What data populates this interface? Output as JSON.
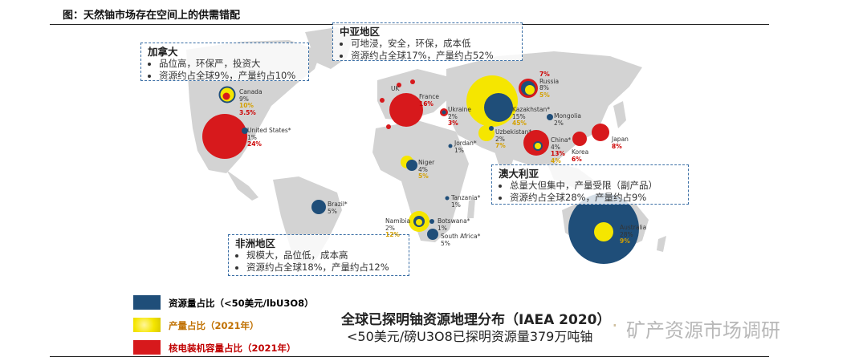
{
  "header": {
    "title": "图：天然铀市场存在空间上的供需错配"
  },
  "boxes": {
    "canada": {
      "title": "加拿大",
      "items": [
        "品位高，环保严，投资大",
        "资源约占全球9%，产量约占10%"
      ]
    },
    "central_asia": {
      "title": "中亚地区",
      "items": [
        "可地浸，安全，环保，成本低",
        "资源约占全球17%，产量约占52%"
      ]
    },
    "australia": {
      "title": "澳大利亚",
      "items": [
        "总量大但集中，产量受限（副产品）",
        "资源约占全球28%，产量约占9%"
      ]
    },
    "africa": {
      "title": "非洲地区",
      "items": [
        "规模大，品位低，成本高",
        "资源约占全球18%，产量约占12%"
      ]
    }
  },
  "countries": {
    "canada": {
      "name": "Canada",
      "resource": "9%",
      "production": "10%",
      "nuclear": "3.5%"
    },
    "usa": {
      "name": "United States*",
      "resource": "1%",
      "nuclear": "24%"
    },
    "uk": {
      "name": "UK"
    },
    "france": {
      "name": "France",
      "nuclear": "16%"
    },
    "ukraine": {
      "name": "Ukraine",
      "resource": "2%",
      "nuclear": "3%"
    },
    "russia": {
      "name": "Russia",
      "resource": "8%",
      "production": "5%",
      "nuclear": "7%"
    },
    "kazakhstan": {
      "name": "Kazakhstan*",
      "resource": "15%",
      "production": "45%"
    },
    "uzbekistan": {
      "name": "Uzbekistan*",
      "resource": "2%",
      "production": "7%"
    },
    "mongolia": {
      "name": "Mongolia",
      "resource": "2%"
    },
    "china": {
      "name": "China*",
      "resource": "4%",
      "nuclear": "13%",
      "production": "4%"
    },
    "korea": {
      "name": "Korea",
      "nuclear": "6%"
    },
    "japan": {
      "name": "Japan",
      "nuclear": "8%"
    },
    "jordan": {
      "name": "Jordan*",
      "resource": "1%"
    },
    "niger": {
      "name": "Niger",
      "resource": "4%",
      "production": "5%"
    },
    "tanzania": {
      "name": "Tanzania*",
      "resource": "1%"
    },
    "brazil": {
      "name": "Brazil*",
      "resource": "5%"
    },
    "namibia": {
      "name": "Namibia",
      "resource": "2%",
      "production": "12%"
    },
    "botswana": {
      "name": "Botswana*",
      "resource": "1%"
    },
    "south_africa": {
      "name": "South Africa*",
      "resource": "5%"
    },
    "australia": {
      "name": "Australia",
      "resource": "28%",
      "production": "9%"
    }
  },
  "legend": {
    "resource": "资源量占比（<50美元/lbU3O8）",
    "production": "产量占比（2021年）",
    "nuclear": "核电装机容量占比（2021年）"
  },
  "colors": {
    "resource": "#1f4e79",
    "production": "#f5e600",
    "nuclear": "#d7191c",
    "land": "#d3d3d3",
    "box_border": "#3a6ea5"
  },
  "footer": {
    "title": "全球已探明铀资源地理分布（IAEA 2020）",
    "subtitle": "<50美元/磅U3O8已探明资源量379万吨铀",
    "watermark": "矿产资源市场调研"
  }
}
